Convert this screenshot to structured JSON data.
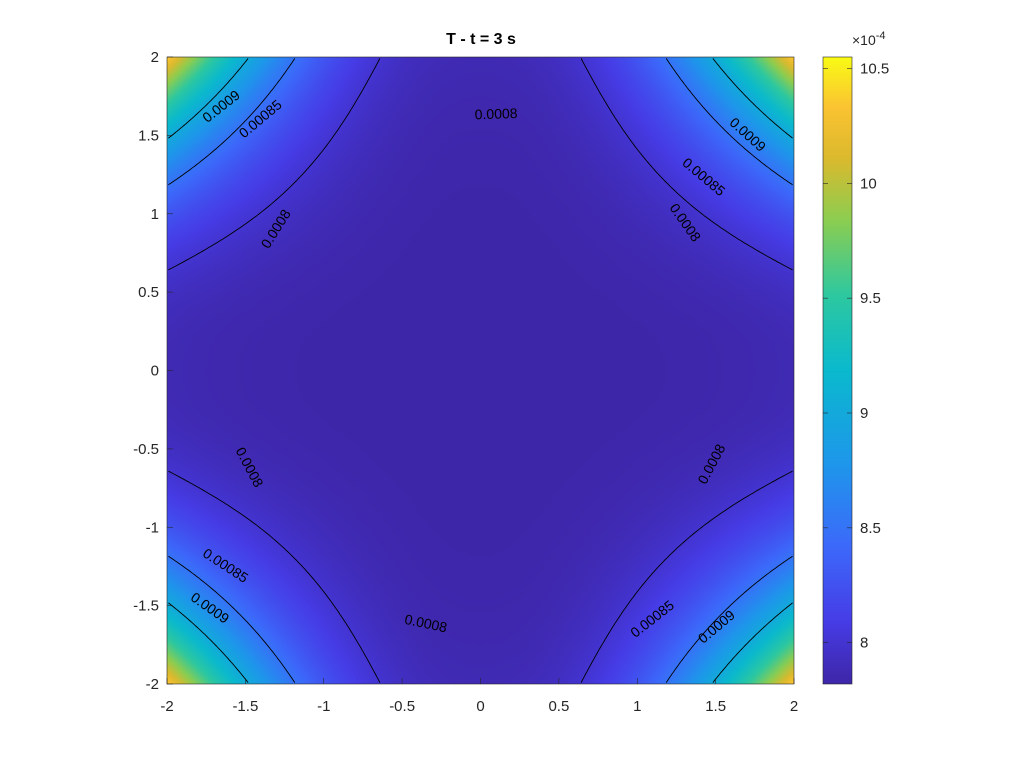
{
  "chart_data": {
    "type": "heatmap",
    "subtype": "filled-contour-with-labeled-isolines",
    "title": "T - t = 3 s",
    "xlabel": "",
    "ylabel": "",
    "xlim": [
      -2,
      2
    ],
    "ylim": [
      -2,
      2
    ],
    "x_ticks": [
      -2,
      -1.5,
      -1,
      -0.5,
      0,
      0.5,
      1,
      1.5,
      2
    ],
    "y_ticks": [
      2,
      1.5,
      1,
      0.5,
      0,
      -0.5,
      -1,
      -1.5,
      -2
    ],
    "x_tick_labels": [
      "-2",
      "-1.5",
      "-1",
      "-0.5",
      "0",
      "0.5",
      "1",
      "1.5",
      "2"
    ],
    "y_tick_labels": [
      "2",
      "1.5",
      "1",
      "0.5",
      "0",
      "-0.5",
      "-1",
      "-1.5",
      "-2"
    ],
    "colormap": "parula",
    "colorbar": {
      "exponent_label": "×10",
      "exponent_power": "-4",
      "clim": [
        7.82,
        10.55
      ],
      "ticks": [
        8,
        8.5,
        9,
        9.5,
        10,
        10.5
      ],
      "tick_labels": [
        "8",
        "8.5",
        "9",
        "9.5",
        "10",
        "10.5"
      ]
    },
    "field": {
      "min_value": 0.000782,
      "max_value": 0.001055,
      "description_hidden": true
    },
    "contour_levels": [
      0.0008,
      0.00085,
      0.0009
    ],
    "contour_labels": [
      {
        "text": "0.0008",
        "x": 0.1,
        "y": 1.63,
        "angle": -2
      },
      {
        "text": "0.0008",
        "x": -1.3,
        "y": 0.9,
        "angle": -58
      },
      {
        "text": "0.0008",
        "x": 1.3,
        "y": 0.94,
        "angle": 55
      },
      {
        "text": "0.0008",
        "x": -1.48,
        "y": -0.62,
        "angle": 62
      },
      {
        "text": "0.0008",
        "x": 1.48,
        "y": -0.6,
        "angle": -62
      },
      {
        "text": "0.0008",
        "x": -0.35,
        "y": -1.62,
        "angle": 12
      },
      {
        "text": "0.00085",
        "x": -1.4,
        "y": 1.6,
        "angle": -40
      },
      {
        "text": "0.00085",
        "x": 1.42,
        "y": 1.23,
        "angle": 40
      },
      {
        "text": "0.00085",
        "x": -1.63,
        "y": -1.25,
        "angle": 33
      },
      {
        "text": "0.00085",
        "x": 1.1,
        "y": -1.59,
        "angle": -38
      },
      {
        "text": "0.0009",
        "x": -1.65,
        "y": 1.68,
        "angle": -38
      },
      {
        "text": "0.0009",
        "x": 1.7,
        "y": 1.5,
        "angle": 42
      },
      {
        "text": "0.0009",
        "x": -1.73,
        "y": -1.52,
        "angle": 35
      },
      {
        "text": "0.0009",
        "x": 1.51,
        "y": -1.64,
        "angle": -40
      }
    ]
  }
}
